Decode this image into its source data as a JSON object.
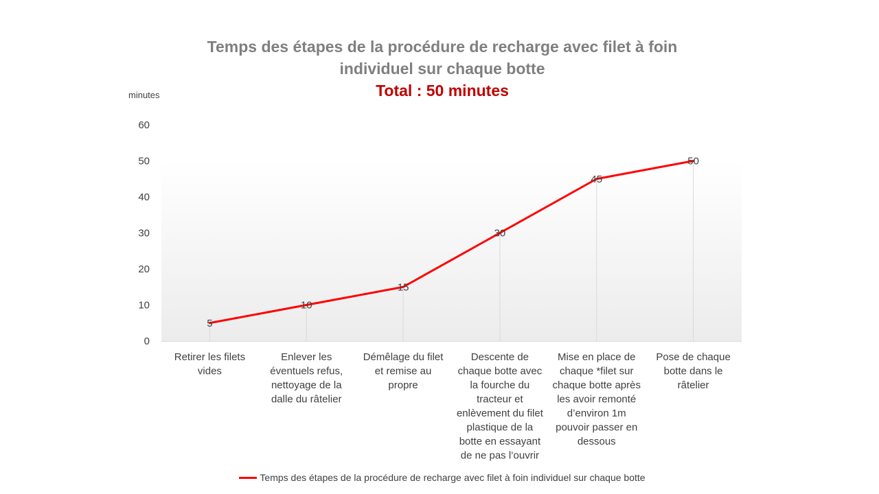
{
  "chart_data": {
    "type": "line",
    "title": "Temps des étapes de la procédure de recharge avec filet à foin individuel sur chaque botte",
    "title_lines": [
      "Temps des étapes de la procédure de recharge avec filet à foin",
      "individuel sur chaque botte"
    ],
    "subtitle": "Total : 50 minutes",
    "ylabel": "minutes",
    "xlabel": "",
    "ylim": [
      0,
      60
    ],
    "yticks": [
      0,
      10,
      20,
      30,
      40,
      50,
      60
    ],
    "grid": false,
    "legend_position": "bottom",
    "categories": [
      [
        "Retirer les filets",
        "vides"
      ],
      [
        "Enlever les",
        "éventuels refus,",
        "nettoyage de la",
        "dalle du râtelier"
      ],
      [
        "Démêlage du filet",
        "et remise au",
        "propre"
      ],
      [
        "Descente de",
        "chaque botte avec",
        "la fourche du",
        "tracteur et",
        "enlèvement du filet",
        "plastique de la",
        "botte en essayant",
        "de ne pas l’ouvrir"
      ],
      [
        "Mise en place de",
        "chaque *filet sur",
        "chaque botte après",
        "les avoir remonté",
        "d’environ 1m",
        "pouvoir passer en",
        "dessous"
      ],
      [
        "Pose de chaque",
        "botte dans le",
        "râtelier"
      ]
    ],
    "series": [
      {
        "name": "Temps des étapes de la procédure de recharge avec filet à foin individuel sur chaque botte",
        "values": [
          5,
          10,
          15,
          30,
          45,
          50
        ],
        "color": "#ff0000"
      }
    ]
  }
}
